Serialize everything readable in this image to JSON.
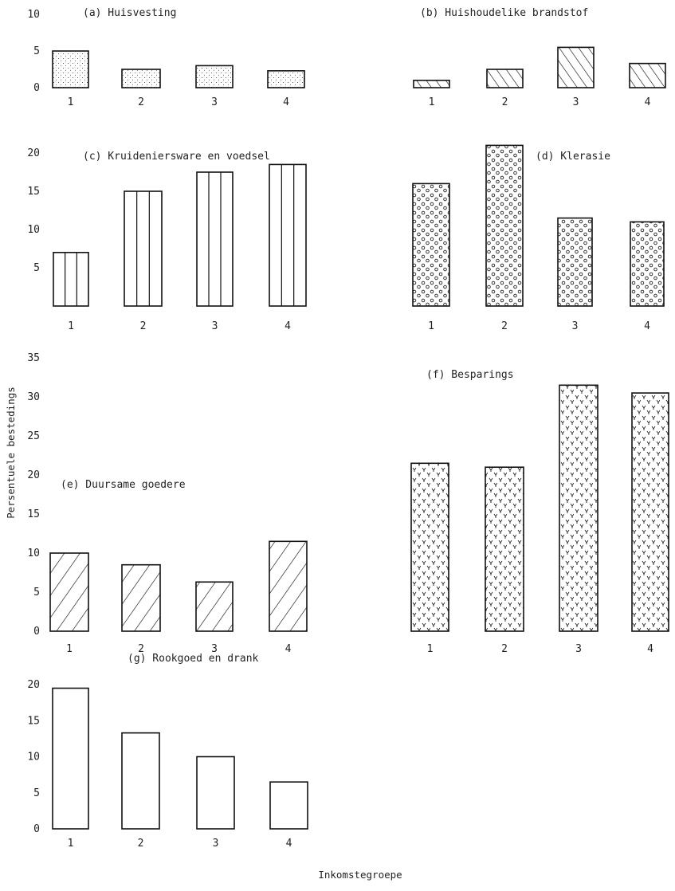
{
  "ylabel": "Persentuele bestedings",
  "xlabel": "Inkomstegroepe",
  "chart_data": [
    {
      "type": "bar",
      "title": "(a)  Huisvesting",
      "categories": [
        "1",
        "2",
        "3",
        "4"
      ],
      "values": [
        5,
        2.5,
        3,
        2.3
      ],
      "yticks": [
        0,
        5,
        10
      ],
      "ylim": [
        0,
        10
      ],
      "pattern": "dots"
    },
    {
      "type": "bar",
      "title": "(b)  Huishoudelike brandstof",
      "categories": [
        "1",
        "2",
        "3",
        "4"
      ],
      "values": [
        1,
        2.5,
        5.5,
        3.3
      ],
      "yticks": [],
      "ylim": [
        0,
        10
      ],
      "pattern": "diagonal"
    },
    {
      "type": "bar",
      "title": "(c)  Kruideniersware en voedsel",
      "categories": [
        "1",
        "2",
        "3",
        "4"
      ],
      "values": [
        7,
        15,
        17.5,
        18.5
      ],
      "yticks": [
        5,
        10,
        15,
        20
      ],
      "ylim": [
        0,
        20
      ],
      "pattern": "vertical"
    },
    {
      "type": "bar",
      "title": "(d)  Klerasie",
      "categories": [
        "1",
        "2",
        "3",
        "4"
      ],
      "values": [
        16,
        21,
        11.5,
        11
      ],
      "yticks": [],
      "ylim": [
        0,
        20
      ],
      "pattern": "circles"
    },
    {
      "type": "bar",
      "title": "(e)  Duursame goedere",
      "categories": [
        "1",
        "2",
        "3",
        "4"
      ],
      "values": [
        10,
        8.5,
        6.3,
        11.5
      ],
      "yticks": [
        0,
        5,
        10,
        15,
        20,
        25,
        30,
        35
      ],
      "ylim": [
        0,
        35
      ],
      "pattern": "backslash"
    },
    {
      "type": "bar",
      "title": "(f)  Besparings",
      "categories": [
        "1",
        "2",
        "3",
        "4"
      ],
      "values": [
        21.5,
        21,
        31.5,
        30.5
      ],
      "yticks": [],
      "ylim": [
        0,
        35
      ],
      "pattern": "y-marks"
    },
    {
      "type": "bar",
      "title": "(g)  Rookgoed en drank",
      "categories": [
        "1",
        "2",
        "3",
        "4"
      ],
      "values": [
        19.5,
        13.3,
        10,
        6.5
      ],
      "yticks": [
        0,
        5,
        10,
        15,
        20
      ],
      "ylim": [
        0,
        20
      ],
      "pattern": "none"
    }
  ]
}
